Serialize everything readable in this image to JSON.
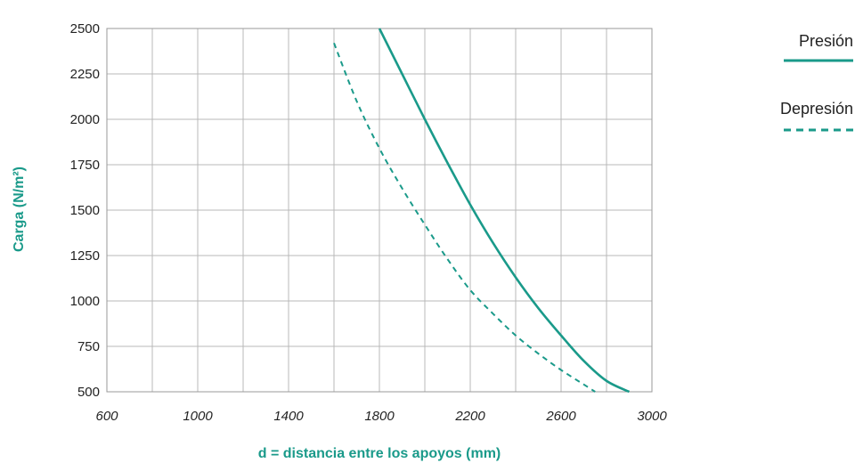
{
  "chart_data": {
    "type": "line",
    "title": "",
    "xlabel": "d = distancia entre los apoyos (mm)",
    "ylabel": "Carga (N/m²)",
    "xlim": [
      600,
      3000
    ],
    "ylim": [
      500,
      2500
    ],
    "x_ticks": [
      "600",
      "1000",
      "1400",
      "1800",
      "2200",
      "2600",
      "3000"
    ],
    "y_ticks": [
      "500",
      "750",
      "1000",
      "1250",
      "1500",
      "1750",
      "2000",
      "2250",
      "2500"
    ],
    "grid": true,
    "legend_position": "right",
    "accent_color": "#1a9a8a",
    "series": [
      {
        "name": "Presión",
        "style": "solid",
        "x": [
          1800,
          1900,
          2000,
          2100,
          2200,
          2300,
          2400,
          2500,
          2600,
          2700,
          2800,
          2900
        ],
        "y": [
          2500,
          2250,
          2000,
          1760,
          1530,
          1320,
          1130,
          960,
          810,
          670,
          560,
          500
        ]
      },
      {
        "name": "Depresión",
        "style": "dashed",
        "x": [
          1600,
          1700,
          1800,
          1900,
          2000,
          2100,
          2200,
          2300,
          2400,
          2500,
          2600,
          2700,
          2750
        ],
        "y": [
          2420,
          2100,
          1840,
          1620,
          1420,
          1230,
          1060,
          930,
          810,
          710,
          620,
          540,
          500
        ]
      }
    ]
  }
}
